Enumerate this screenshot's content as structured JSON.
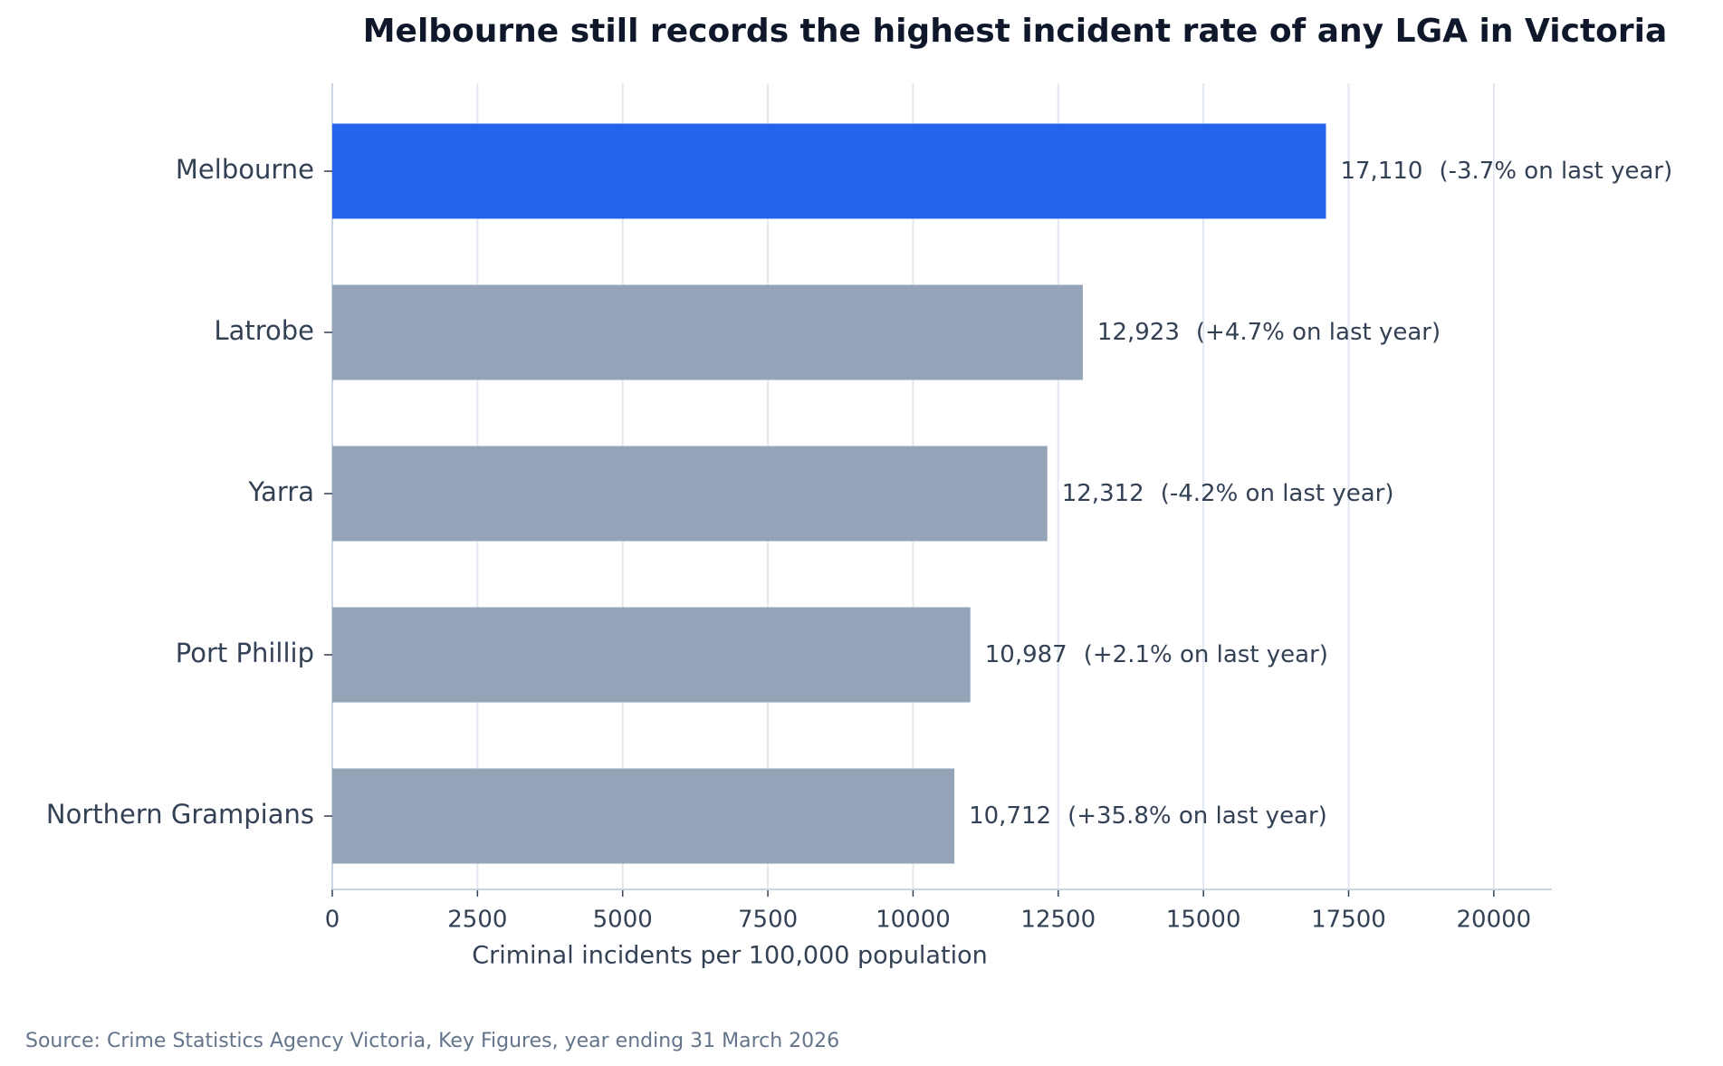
{
  "chart_data": {
    "type": "bar",
    "orientation": "horizontal",
    "title": "Melbourne still records the highest incident rate of any LGA in Victoria",
    "categories": [
      "Melbourne",
      "Latrobe",
      "Yarra",
      "Port Phillip",
      "Northern Grampians"
    ],
    "values": [
      17110,
      12923,
      12312,
      10987,
      10712
    ],
    "value_labels": [
      "17,110",
      "12,923",
      "12,312",
      "10,987",
      "10,712"
    ],
    "annotations": [
      "(-3.7% on last year)",
      "(+4.7% on last year)",
      "(-4.2% on last year)",
      "(+2.1% on last year)",
      "(+35.8% on last year)"
    ],
    "colors": [
      "#2563eb",
      "#94a3b8",
      "#94a3b8",
      "#94a3b8",
      "#94a3b8"
    ],
    "xlabel": "Criminal incidents per 100,000 population",
    "xlim": [
      0,
      21000
    ],
    "xticks": [
      0,
      2500,
      5000,
      7500,
      10000,
      12500,
      15000,
      17500,
      20000
    ],
    "grid": true,
    "source": "Source: Crime Statistics Agency Victoria, Key Figures, year ending 31 March 2026"
  }
}
